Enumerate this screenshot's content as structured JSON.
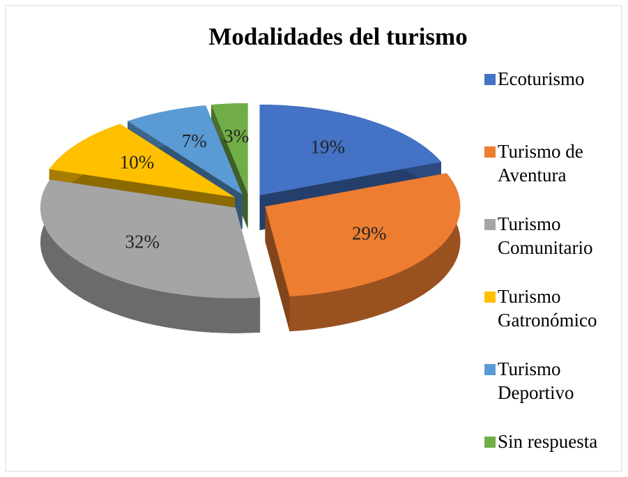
{
  "chart_data": {
    "type": "pie",
    "title": "Modalidades del turismo",
    "categories": [
      "Ecoturismo",
      "Turismo de Aventura",
      "Turismo Comunitario",
      "Turismo Gatronómico",
      "Turismo Deportivo",
      "Sin respuesta"
    ],
    "values": [
      19,
      29,
      32,
      10,
      7,
      3
    ],
    "value_labels": [
      "19%",
      "29%",
      "32%",
      "10%",
      "7%",
      "3%"
    ],
    "colors": [
      "#4472c4",
      "#ed7d31",
      "#a5a5a5",
      "#ffc000",
      "#5b9bd5",
      "#70ad47"
    ],
    "legend": "right"
  }
}
